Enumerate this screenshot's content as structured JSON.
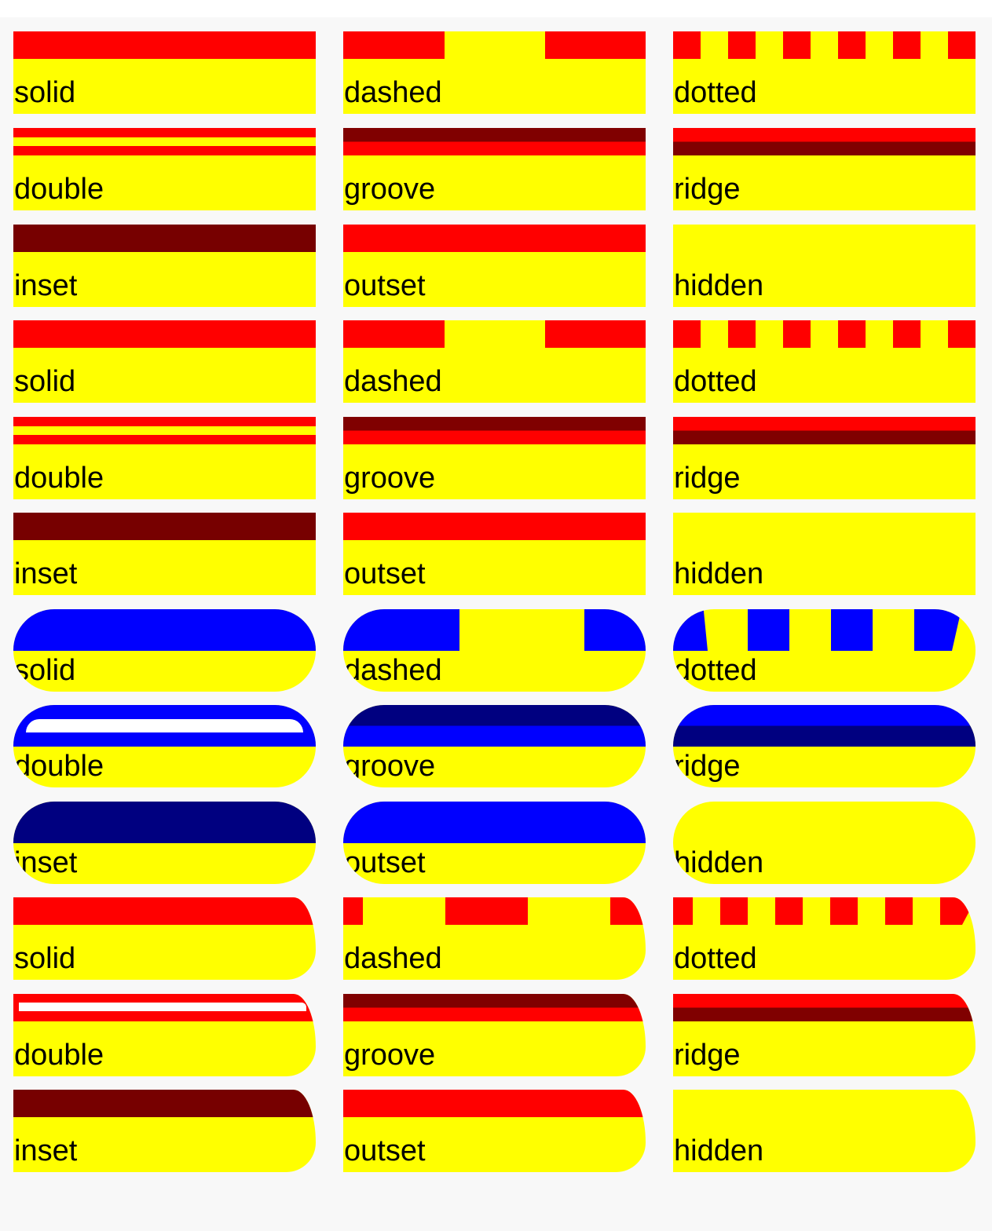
{
  "colors": {
    "background": "#f8f8f8",
    "box_fill": "#ffff00",
    "label": "#000000",
    "red": "#ff0000",
    "dark_red": "#800000",
    "inset_red": "#770000",
    "blue": "#0000ff",
    "navy": "#000080",
    "white": "#ffffff"
  },
  "groups": [
    {
      "shape": "square",
      "rows": [
        {
          "labels": [
            "solid",
            "dashed",
            "dotted"
          ],
          "styles": [
            "solid",
            "dashed",
            "dotted"
          ]
        },
        {
          "labels": [
            "double",
            "groove",
            "ridge"
          ],
          "styles": [
            "double",
            "groove",
            "ridge"
          ]
        },
        {
          "labels": [
            "inset",
            "outset",
            "hidden"
          ],
          "styles": [
            "inset",
            "outset",
            "hidden"
          ]
        }
      ]
    },
    {
      "shape": "square",
      "rows": [
        {
          "labels": [
            "solid",
            "dashed",
            "dotted"
          ],
          "styles": [
            "solid",
            "dashed",
            "dotted"
          ]
        },
        {
          "labels": [
            "double",
            "groove",
            "ridge"
          ],
          "styles": [
            "double",
            "groove",
            "ridge"
          ]
        },
        {
          "labels": [
            "inset",
            "outset",
            "hidden"
          ],
          "styles": [
            "inset",
            "outset",
            "hidden"
          ]
        }
      ]
    },
    {
      "shape": "pill",
      "rows": [
        {
          "labels": [
            "solid",
            "dashed",
            "dotted"
          ],
          "styles": [
            "solid",
            "dashed",
            "dotted"
          ]
        },
        {
          "labels": [
            "double",
            "groove",
            "ridge"
          ],
          "styles": [
            "double",
            "groove",
            "ridge"
          ]
        },
        {
          "labels": [
            "inset",
            "outset",
            "hidden"
          ],
          "styles": [
            "inset",
            "outset",
            "hidden"
          ]
        }
      ]
    },
    {
      "shape": "rounded-right",
      "rows": [
        {
          "labels": [
            "solid",
            "dashed",
            "dotted"
          ],
          "styles": [
            "solid",
            "dashed",
            "dotted"
          ]
        },
        {
          "labels": [
            "double",
            "groove",
            "ridge"
          ],
          "styles": [
            "double",
            "groove",
            "ridge"
          ]
        },
        {
          "labels": [
            "inset",
            "outset",
            "hidden"
          ],
          "styles": [
            "inset",
            "outset",
            "hidden"
          ]
        }
      ]
    }
  ]
}
